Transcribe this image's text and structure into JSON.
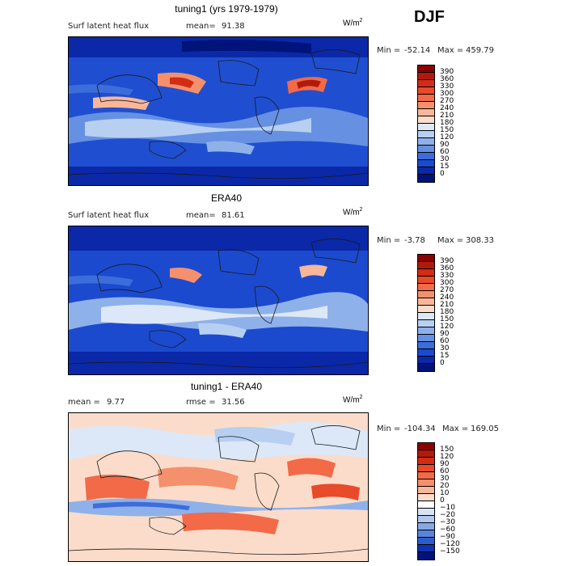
{
  "header": {
    "season": "DJF"
  },
  "units_base": "W/m",
  "units_exp": "2",
  "chart_data": [
    {
      "type": "heatmap",
      "title": "tuning1 (yrs 1979-1979)",
      "variable": "Surf latent heat flux",
      "mean_label": "mean=",
      "mean_value": "91.38",
      "min_label": "Min =",
      "min_value": "-52.14",
      "max_label": "Max =",
      "max_value": "459.79",
      "colorbar": [
        "390",
        "360",
        "330",
        "300",
        "270",
        "240",
        "210",
        "180",
        "150",
        "120",
        "90",
        "60",
        "30",
        "15",
        "0"
      ],
      "colors": [
        "#8b0000",
        "#b01a0c",
        "#d22c15",
        "#e84a2a",
        "#f26a48",
        "#f5906c",
        "#f8b79a",
        "#fbdcca",
        "#dce8f7",
        "#b7cff1",
        "#8fb1ea",
        "#6690e2",
        "#3d6ddb",
        "#1b4acf",
        "#0a28a8",
        "#00137a"
      ]
    },
    {
      "type": "heatmap",
      "title": "ERA40",
      "variable": "Surf latent heat flux",
      "mean_label": "mean=",
      "mean_value": "81.61",
      "min_label": "Min =",
      "min_value": "-3.78",
      "max_label": "Max =",
      "max_value": "308.33",
      "colorbar": [
        "390",
        "360",
        "330",
        "300",
        "270",
        "240",
        "210",
        "180",
        "150",
        "120",
        "90",
        "60",
        "30",
        "15",
        "0"
      ],
      "colors": [
        "#8b0000",
        "#b01a0c",
        "#d22c15",
        "#e84a2a",
        "#f26a48",
        "#f5906c",
        "#f8b79a",
        "#fbdcca",
        "#dce8f7",
        "#b7cff1",
        "#8fb1ea",
        "#6690e2",
        "#3d6ddb",
        "#1b4acf",
        "#0a28a8",
        "#00137a"
      ]
    },
    {
      "type": "heatmap",
      "title": "tuning1 - ERA40",
      "mean_label": "mean =",
      "mean_value": "9.77",
      "rmse_label": "rmse =",
      "rmse_value": "31.56",
      "min_label": "Min =",
      "min_value": "-104.34",
      "max_label": "Max =",
      "max_value": "169.05",
      "colorbar": [
        "150",
        "120",
        "90",
        "60",
        "30",
        "20",
        "10",
        "0",
        "−10",
        "−20",
        "−30",
        "−60",
        "−90",
        "−120",
        "−150"
      ],
      "colors": [
        "#8b0000",
        "#b01a0c",
        "#d22c15",
        "#e84a2a",
        "#f26a48",
        "#f5906c",
        "#f8b79a",
        "#fbdcca",
        "#ffffff",
        "#d6e4f5",
        "#b0c8ee",
        "#86a8e6",
        "#5a84db",
        "#2f5ccd",
        "#0d33b0",
        "#00137a"
      ]
    }
  ]
}
